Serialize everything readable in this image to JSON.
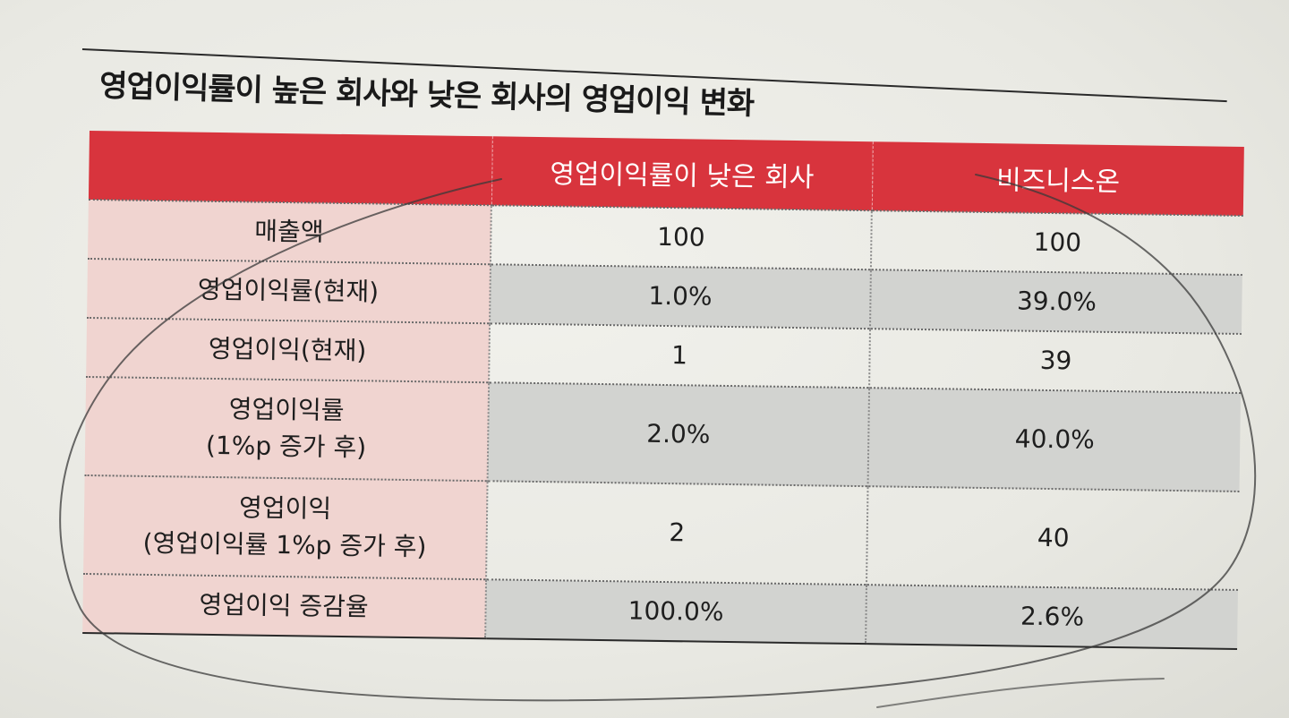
{
  "title": "영업이익률이 높은 회사와 낮은 회사의 영업이익 변화",
  "table": {
    "headers": [
      "",
      "영업이익률이 낮은 회사",
      "비즈니스온"
    ],
    "rows": [
      {
        "label": "매출액",
        "low": "100",
        "biz": "100"
      },
      {
        "label": "영업이익률(현재)",
        "low": "1.0%",
        "biz": "39.0%"
      },
      {
        "label": "영업이익(현재)",
        "low": "1",
        "biz": "39"
      },
      {
        "label": "영업이익률\n(1%p 증가 후)",
        "low": "2.0%",
        "biz": "40.0%"
      },
      {
        "label": "영업이익\n(영업이익률 1%p 증가 후)",
        "low": "2",
        "biz": "40"
      },
      {
        "label": "영업이익 증감율",
        "low": "100.0%",
        "biz": "2.6%"
      }
    ]
  }
}
